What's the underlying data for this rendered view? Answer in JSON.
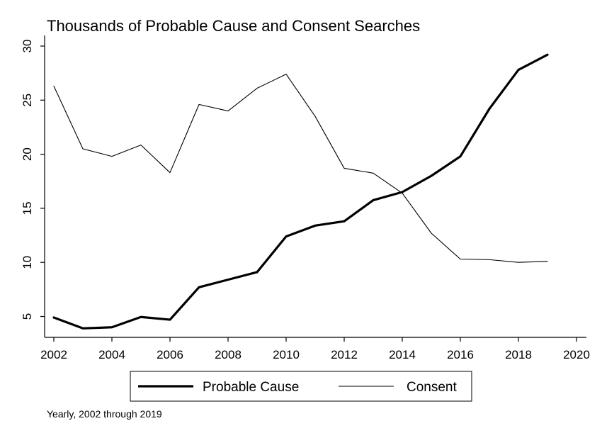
{
  "chart_data": {
    "type": "line",
    "title": "Thousands of Probable Cause and Consent Searches",
    "note": "Yearly, 2002 through 2019",
    "xlabel": "",
    "ylabel": "",
    "xlim": [
      2002,
      2020
    ],
    "ylim": [
      3,
      30
    ],
    "x_ticks": [
      2002,
      2004,
      2006,
      2008,
      2010,
      2012,
      2014,
      2016,
      2018,
      2020
    ],
    "y_ticks": [
      5,
      10,
      15,
      20,
      25,
      30
    ],
    "grid": false,
    "legend_position": "bottom",
    "x": [
      2002,
      2003,
      2004,
      2005,
      2006,
      2007,
      2008,
      2009,
      2010,
      2011,
      2012,
      2013,
      2014,
      2015,
      2016,
      2017,
      2018,
      2019
    ],
    "series": [
      {
        "name": "Probable Cause",
        "style": "thick",
        "color": "#000000",
        "values": [
          4.9,
          3.9,
          4.0,
          4.95,
          4.7,
          7.7,
          8.4,
          9.1,
          12.4,
          13.4,
          13.8,
          15.75,
          16.5,
          18.0,
          19.8,
          24.2,
          27.8,
          29.2
        ]
      },
      {
        "name": "Consent",
        "style": "thin",
        "color": "#000000",
        "values": [
          26.3,
          20.5,
          19.8,
          20.85,
          18.3,
          24.6,
          24.0,
          26.1,
          27.4,
          23.5,
          18.7,
          18.25,
          16.4,
          12.7,
          10.3,
          10.25,
          10.0,
          10.1
        ]
      }
    ]
  }
}
